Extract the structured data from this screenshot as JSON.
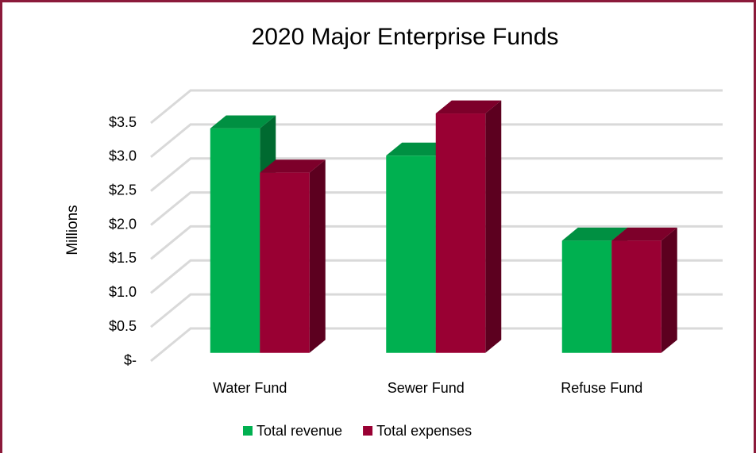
{
  "chart_data": {
    "type": "bar3d",
    "title": "2020 Major Enterprise Funds",
    "y_label": "Millions",
    "categories": [
      "Water Fund",
      "Sewer Fund",
      "Refuse Fund"
    ],
    "series": [
      {
        "name": "Total revenue",
        "color": "#00b050",
        "values": [
          3.3,
          2.9,
          1.65
        ]
      },
      {
        "name": "Total expenses",
        "color": "#990033",
        "values": [
          2.65,
          3.52,
          1.65
        ]
      }
    ],
    "ylim": [
      0,
      3.5
    ],
    "yticks": [
      {
        "value": 0,
        "label": "$-"
      },
      {
        "value": 0.5,
        "label": "$0.5"
      },
      {
        "value": 1,
        "label": "$1.0"
      },
      {
        "value": 1.5,
        "label": "$1.5"
      },
      {
        "value": 2,
        "label": "$2.0"
      },
      {
        "value": 2.5,
        "label": "$2.5"
      },
      {
        "value": 3,
        "label": "$3.0"
      },
      {
        "value": 3.5,
        "label": "$3.5"
      }
    ],
    "grid": true,
    "legend": "bottom"
  }
}
